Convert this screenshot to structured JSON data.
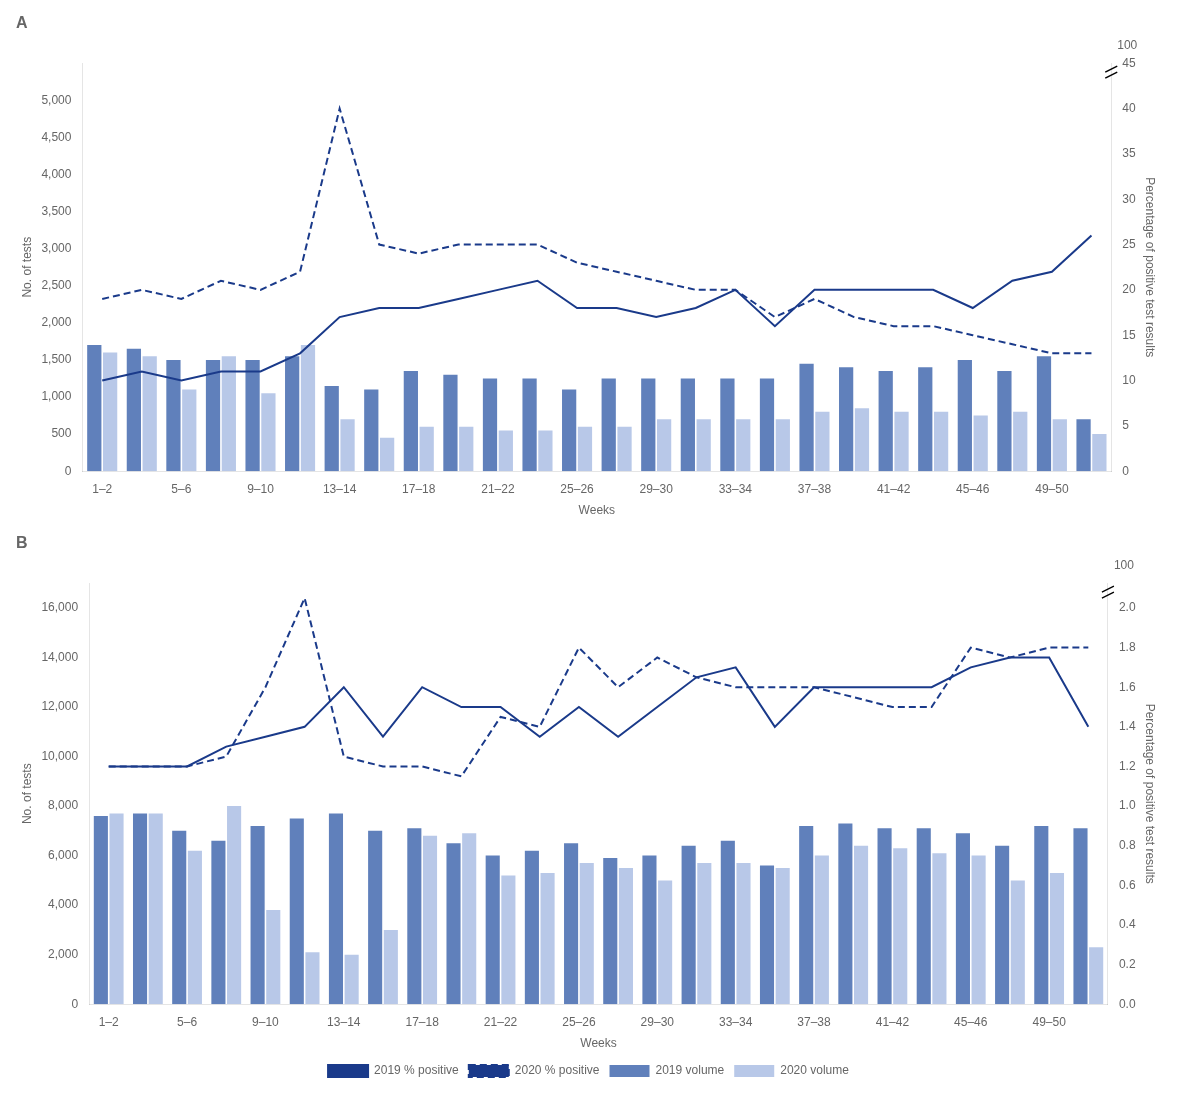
{
  "chart_data": [
    {
      "type": "bar",
      "title": "A",
      "categories": [
        "1–2",
        null,
        "5–6",
        null,
        "9–10",
        null,
        "13–14",
        null,
        "17–18",
        null,
        "21–22",
        null,
        "25–26",
        null,
        "29–30",
        null,
        "33–34",
        null,
        "37–38",
        null,
        "41–42",
        null,
        "45–46",
        null,
        "49–50",
        null
      ],
      "series": [
        {
          "name": "2019 volume",
          "color": "#6080bb",
          "values": [
            1700,
            1650,
            1500,
            1500,
            1500,
            1550,
            1150,
            1100,
            1350,
            1300,
            1250,
            1250,
            1100,
            1250,
            1250,
            1250,
            1250,
            1250,
            1450,
            1400,
            1350,
            1400,
            1500,
            1350,
            1550,
            700
          ]
        },
        {
          "name": "2020 volume",
          "color": "#b8c8e8",
          "values": [
            1600,
            1550,
            1100,
            1550,
            1050,
            1700,
            700,
            450,
            600,
            600,
            550,
            550,
            600,
            600,
            700,
            700,
            700,
            700,
            800,
            850,
            800,
            800,
            750,
            800,
            700,
            500
          ]
        },
        {
          "name": "2019 % positive",
          "color": "#1a3a8a",
          "type": "line",
          "axis": "y2",
          "line_style": "solid",
          "values": [
            10,
            11,
            10,
            11,
            11,
            13,
            17,
            18,
            18,
            19,
            20,
            21,
            18,
            18,
            17,
            18,
            20,
            16,
            20,
            20,
            20,
            20,
            18,
            21,
            22,
            26
          ]
        },
        {
          "name": "2020 % positive",
          "color": "#1a3a8a",
          "type": "line",
          "axis": "y2",
          "line_style": "dashed",
          "values": [
            19,
            20,
            19,
            21,
            20,
            22,
            40,
            25,
            24,
            25,
            25,
            25,
            23,
            22,
            21,
            20,
            20,
            17,
            19,
            17,
            16,
            16,
            15,
            14,
            13,
            13
          ]
        }
      ],
      "xlabel": "Weeks",
      "ylabel": "No. of tests",
      "y2label": "Percentage of positive test results",
      "ylim": [
        0,
        5500
      ],
      "yticks": [
        0,
        500,
        {
          "value": 1000,
          "label": "1,000"
        },
        {
          "value": 1500,
          "label": "1,500"
        },
        {
          "value": 2000,
          "label": "2,000"
        },
        {
          "value": 2500,
          "label": "2,500"
        },
        {
          "value": 3000,
          "label": "3,000"
        },
        {
          "value": 3500,
          "label": "3,500"
        },
        {
          "value": 4000,
          "label": "4,000"
        },
        {
          "value": 4500,
          "label": "4,500"
        },
        {
          "value": 5000,
          "label": "5,000"
        }
      ],
      "y2lim": [
        0,
        45
      ],
      "y2ticks": [
        0,
        5,
        10,
        15,
        20,
        25,
        30,
        35,
        40,
        45
      ],
      "annotations": [
        "100"
      ],
      "grid": false
    },
    {
      "type": "bar",
      "title": "B",
      "categories": [
        "1–2",
        null,
        "5–6",
        null,
        "9–10",
        null,
        "13–14",
        null,
        "17–18",
        null,
        "21–22",
        null,
        "25–26",
        null,
        "29–30",
        null,
        "33–34",
        null,
        "37–38",
        null,
        "41–42",
        null,
        "45–46",
        null,
        "49–50",
        null
      ],
      "series": [
        {
          "name": "2019 volume",
          "color": "#6080bb",
          "values": [
            7600,
            7700,
            7000,
            6600,
            7200,
            7500,
            7700,
            7000,
            7100,
            6500,
            6000,
            6200,
            6500,
            5900,
            6000,
            6400,
            6600,
            5600,
            7200,
            7300,
            7100,
            7100,
            6900,
            6400,
            7200,
            7100
          ]
        },
        {
          "name": "2020 volume",
          "color": "#b8c8e8",
          "values": [
            7700,
            7700,
            6200,
            8000,
            3800,
            2100,
            2000,
            3000,
            6800,
            6900,
            5200,
            5300,
            5700,
            5500,
            5000,
            5700,
            5700,
            5500,
            6000,
            6400,
            6300,
            6100,
            6000,
            5000,
            5300,
            2300
          ]
        },
        {
          "name": "2019 % positive",
          "color": "#1a3a8a",
          "type": "line",
          "axis": "y2",
          "line_style": "solid",
          "values": [
            1.2,
            1.2,
            1.2,
            1.3,
            1.35,
            1.4,
            1.6,
            1.35,
            1.6,
            1.5,
            1.5,
            1.35,
            1.5,
            1.35,
            1.5,
            1.65,
            1.7,
            1.4,
            1.6,
            1.6,
            1.6,
            1.6,
            1.7,
            1.75,
            1.75,
            1.4
          ]
        },
        {
          "name": "2020 % positive",
          "color": "#1a3a8a",
          "type": "line",
          "axis": "y2",
          "line_style": "dashed",
          "values": [
            1.2,
            1.2,
            1.2,
            1.25,
            1.6,
            2.05,
            1.25,
            1.2,
            1.2,
            1.15,
            1.45,
            1.4,
            1.8,
            1.6,
            1.75,
            1.65,
            1.6,
            1.6,
            1.6,
            1.55,
            1.5,
            1.5,
            1.8,
            1.75,
            1.8,
            1.8
          ]
        }
      ],
      "xlabel": "Weeks",
      "ylabel": "No. of tests",
      "y2label": "Percentage of positive test results",
      "ylim": [
        0,
        17000
      ],
      "yticks": [
        0,
        {
          "value": 2000,
          "label": "2,000"
        },
        {
          "value": 4000,
          "label": "4,000"
        },
        {
          "value": 6000,
          "label": "6,000"
        },
        {
          "value": 8000,
          "label": "8,000"
        },
        {
          "value": 10000,
          "label": "10,000"
        },
        {
          "value": 12000,
          "label": "12,000"
        },
        {
          "value": 14000,
          "label": "14,000"
        },
        {
          "value": 16000,
          "label": "16,000"
        }
      ],
      "y2lim": [
        0,
        2.125
      ],
      "y2ticks": [
        {
          "value": 0,
          "label": "0.0"
        },
        0.2,
        0.4,
        0.6,
        0.8,
        {
          "value": 1.0,
          "label": "1.0"
        },
        1.2,
        1.4,
        1.6,
        1.8,
        {
          "value": 2.0,
          "label": "2.0"
        }
      ],
      "annotations": [
        "100"
      ],
      "grid": false,
      "legend": "bottom"
    }
  ]
}
